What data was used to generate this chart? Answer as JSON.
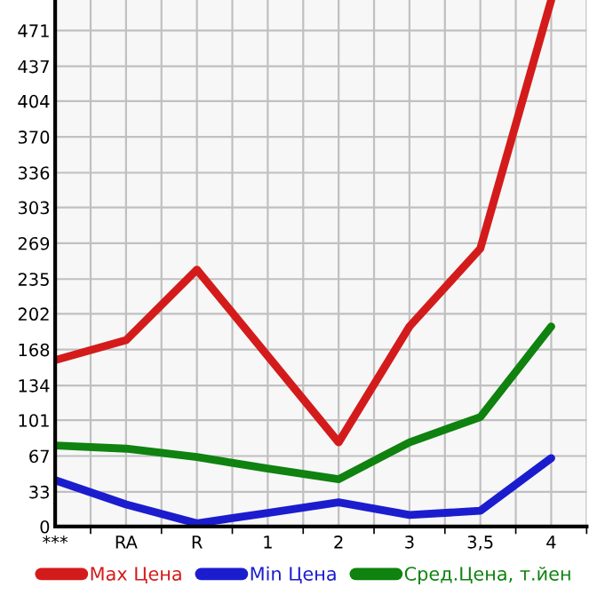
{
  "chart_data": {
    "type": "line",
    "categories": [
      "***",
      "RA",
      "R",
      "1",
      "2",
      "3",
      "3,5",
      "4"
    ],
    "series": [
      {
        "name": "Max Цена",
        "color": "#d41b1b",
        "values": [
          158,
          177,
          244,
          162,
          80,
          190,
          264,
          500
        ]
      },
      {
        "name": "Min Цена",
        "color": "#1c1ccf",
        "values": [
          44,
          21,
          3,
          13,
          23,
          11,
          15,
          65
        ]
      },
      {
        "name": "Сред.Цена, т.йен",
        "color": "#0f820f",
        "values": [
          77,
          74,
          66,
          55,
          45,
          80,
          104,
          190
        ]
      }
    ],
    "ylim": [
      0,
      500
    ],
    "yticks": [
      0,
      33,
      67,
      101,
      134,
      168,
      202,
      235,
      269,
      303,
      336,
      370,
      404,
      437,
      471
    ],
    "grid": true,
    "legend": "bottom",
    "marker": "none",
    "line_style": "solid"
  }
}
